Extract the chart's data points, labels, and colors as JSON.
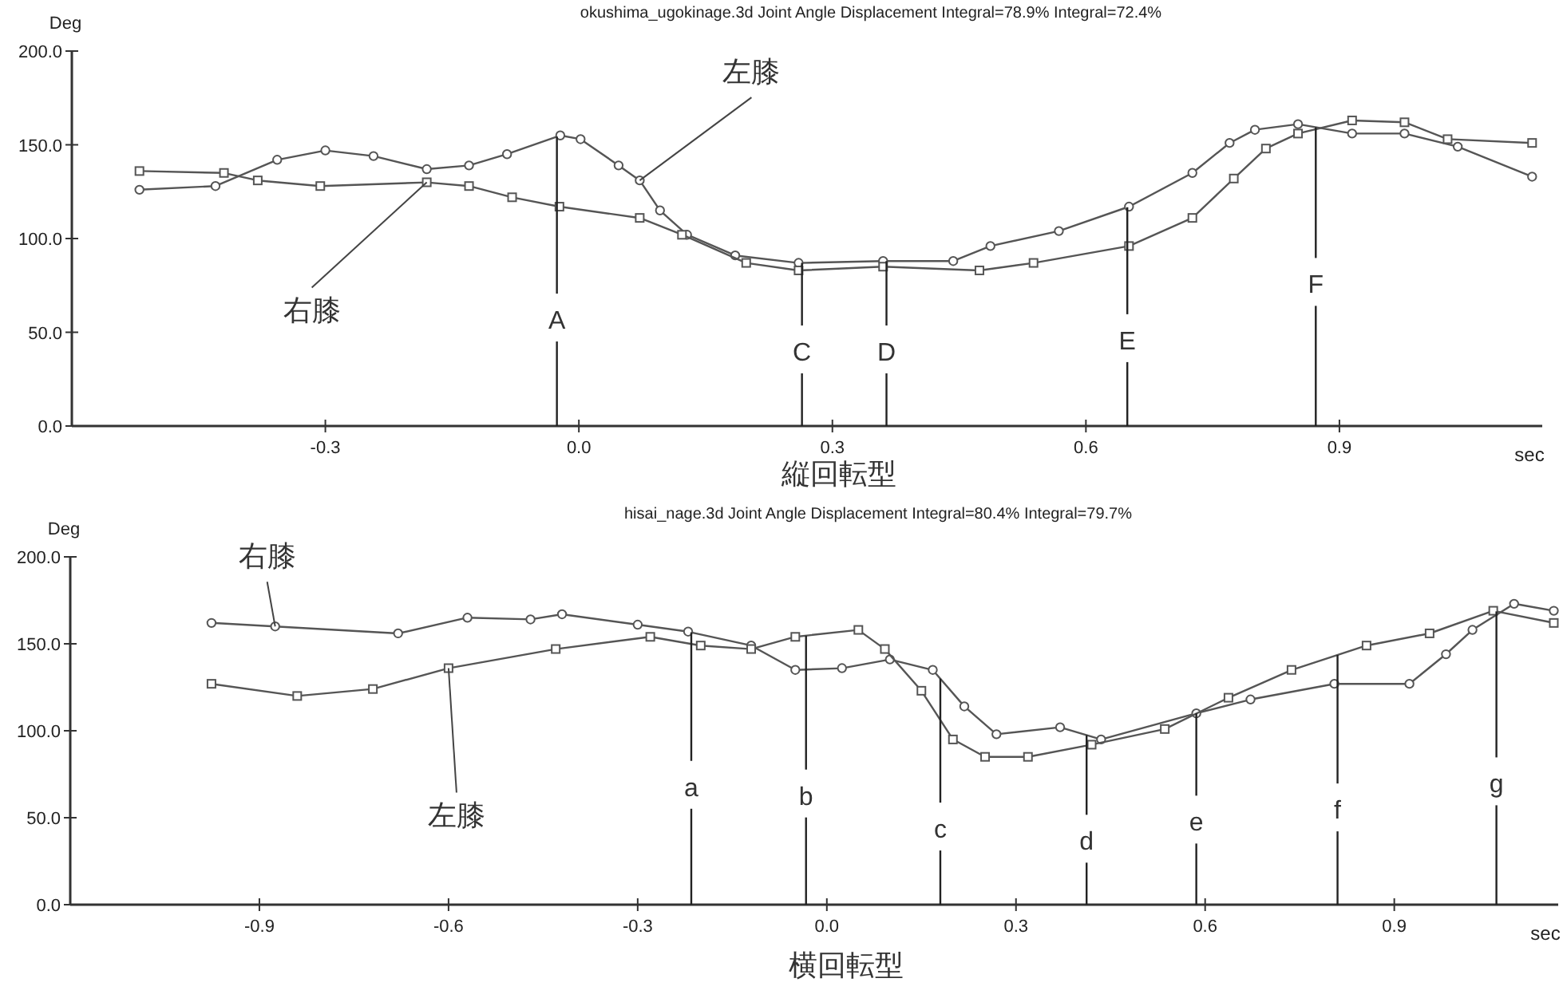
{
  "chart_data": [
    {
      "type": "line",
      "title": "okushima_ugokinage.3d Joint Angle Displacement   Integral=78.9%   Integral=72.4%",
      "xlabel": "sec",
      "ylabel": "Deg",
      "xlim": [
        -0.6,
        1.14
      ],
      "ylim": [
        0,
        200
      ],
      "xticks": [
        -0.3,
        {
          "value": 0,
          "label": "0.0"
        },
        0.3,
        0.6,
        0.9
      ],
      "yticks": [
        {
          "value": 0,
          "label": "0.0"
        },
        {
          "value": 50,
          "label": "50.0"
        },
        {
          "value": 100,
          "label": "100.0"
        },
        {
          "value": 150,
          "label": "150.0"
        },
        {
          "value": 200,
          "label": "200.0"
        }
      ],
      "series": [
        {
          "name": "左膝",
          "color": "#555555",
          "marker": "circle",
          "x": [
            -0.52,
            -0.43,
            -0.357,
            -0.3,
            -0.243,
            -0.18,
            -0.13,
            -0.085,
            -0.022,
            0.002,
            0.047,
            0.072,
            0.096,
            0.128,
            0.185,
            0.26,
            0.36,
            0.443,
            0.487,
            0.568,
            0.651,
            0.726,
            0.77,
            0.8,
            0.851,
            0.915,
            0.977,
            1.04,
            1.128
          ],
          "values": [
            126,
            128,
            142,
            147,
            144,
            137,
            139,
            145,
            155,
            153,
            139,
            131,
            115,
            102,
            91,
            87,
            88,
            88,
            96,
            104,
            117,
            135,
            151,
            158,
            161,
            156,
            156,
            149,
            133
          ]
        },
        {
          "name": "右膝",
          "color": "#555555",
          "marker": "square",
          "x": [
            -0.52,
            -0.42,
            -0.38,
            -0.306,
            -0.18,
            -0.13,
            -0.079,
            -0.023,
            0.072,
            0.122,
            0.198,
            0.26,
            0.36,
            0.474,
            0.538,
            0.651,
            0.726,
            0.775,
            0.813,
            0.851,
            0.915,
            0.977,
            1.028,
            1.128
          ],
          "values": [
            136,
            135,
            131,
            128,
            130,
            128,
            122,
            117,
            111,
            102,
            87,
            83,
            85,
            83,
            87,
            96,
            111,
            132,
            148,
            156,
            163,
            162,
            153,
            151
          ]
        }
      ],
      "ref_lines": [
        {
          "axis": "x",
          "value": -0.026,
          "label": "A"
        },
        {
          "axis": "x",
          "value": 0.264,
          "label": "C"
        },
        {
          "axis": "x",
          "value": 0.364,
          "label": "D"
        },
        {
          "axis": "x",
          "value": 0.649,
          "label": "E"
        },
        {
          "axis": "x",
          "value": 0.872,
          "label": "F"
        }
      ],
      "annotations": [
        "縦回転型"
      ]
    },
    {
      "type": "line",
      "title": "hisai_nage.3d Joint Angle Displacement   Integral=80.4%   Integral=79.7%",
      "xlabel": "sec",
      "ylabel": "Deg",
      "xlim": [
        -1.2,
        1.16
      ],
      "ylim": [
        0,
        200
      ],
      "xticks": [
        -0.9,
        -0.6,
        -0.3,
        {
          "value": 0,
          "label": "0.0"
        },
        0.3,
        0.6,
        0.9
      ],
      "yticks": [
        {
          "value": 0,
          "label": "0.0"
        },
        {
          "value": 50,
          "label": "50.0"
        },
        {
          "value": 100,
          "label": "100.0"
        },
        {
          "value": 150,
          "label": "150.0"
        },
        {
          "value": 200,
          "label": "200.0"
        }
      ],
      "series": [
        {
          "name": "右膝",
          "color": "#555555",
          "marker": "circle",
          "x": [
            -0.976,
            -0.875,
            -0.68,
            -0.57,
            -0.47,
            -0.42,
            -0.3,
            -0.22,
            -0.12,
            -0.05,
            0.024,
            0.1,
            0.168,
            0.218,
            0.269,
            0.37,
            0.435,
            0.586,
            0.672,
            0.805,
            0.924,
            0.982,
            1.024,
            1.09,
            1.153
          ],
          "values": [
            162,
            160,
            156,
            165,
            164,
            167,
            161,
            157,
            149,
            135,
            136,
            141,
            135,
            114,
            98,
            102,
            95,
            110,
            118,
            127,
            127,
            144,
            158,
            173,
            169
          ]
        },
        {
          "name": "左膝",
          "color": "#555555",
          "marker": "square",
          "x": [
            -0.976,
            -0.84,
            -0.72,
            -0.6,
            -0.43,
            -0.28,
            -0.2,
            -0.12,
            -0.05,
            0.05,
            0.092,
            0.15,
            0.2,
            0.251,
            0.319,
            0.42,
            0.536,
            0.637,
            0.737,
            0.856,
            0.956,
            1.057,
            1.153
          ],
          "values": [
            127,
            120,
            124,
            136,
            147,
            154,
            149,
            147,
            154,
            158,
            147,
            123,
            95,
            85,
            85,
            92,
            101,
            119,
            135,
            149,
            156,
            169,
            162
          ]
        }
      ],
      "ref_lines": [
        {
          "axis": "x",
          "value": -0.215,
          "label": "a"
        },
        {
          "axis": "x",
          "value": -0.033,
          "label": "b"
        },
        {
          "axis": "x",
          "value": 0.18,
          "label": "c"
        },
        {
          "axis": "x",
          "value": 0.412,
          "label": "d"
        },
        {
          "axis": "x",
          "value": 0.586,
          "label": "e"
        },
        {
          "axis": "x",
          "value": 0.81,
          "label": "f"
        },
        {
          "axis": "x",
          "value": 1.062,
          "label": "g"
        }
      ],
      "annotations": [
        "横回転型"
      ]
    }
  ]
}
